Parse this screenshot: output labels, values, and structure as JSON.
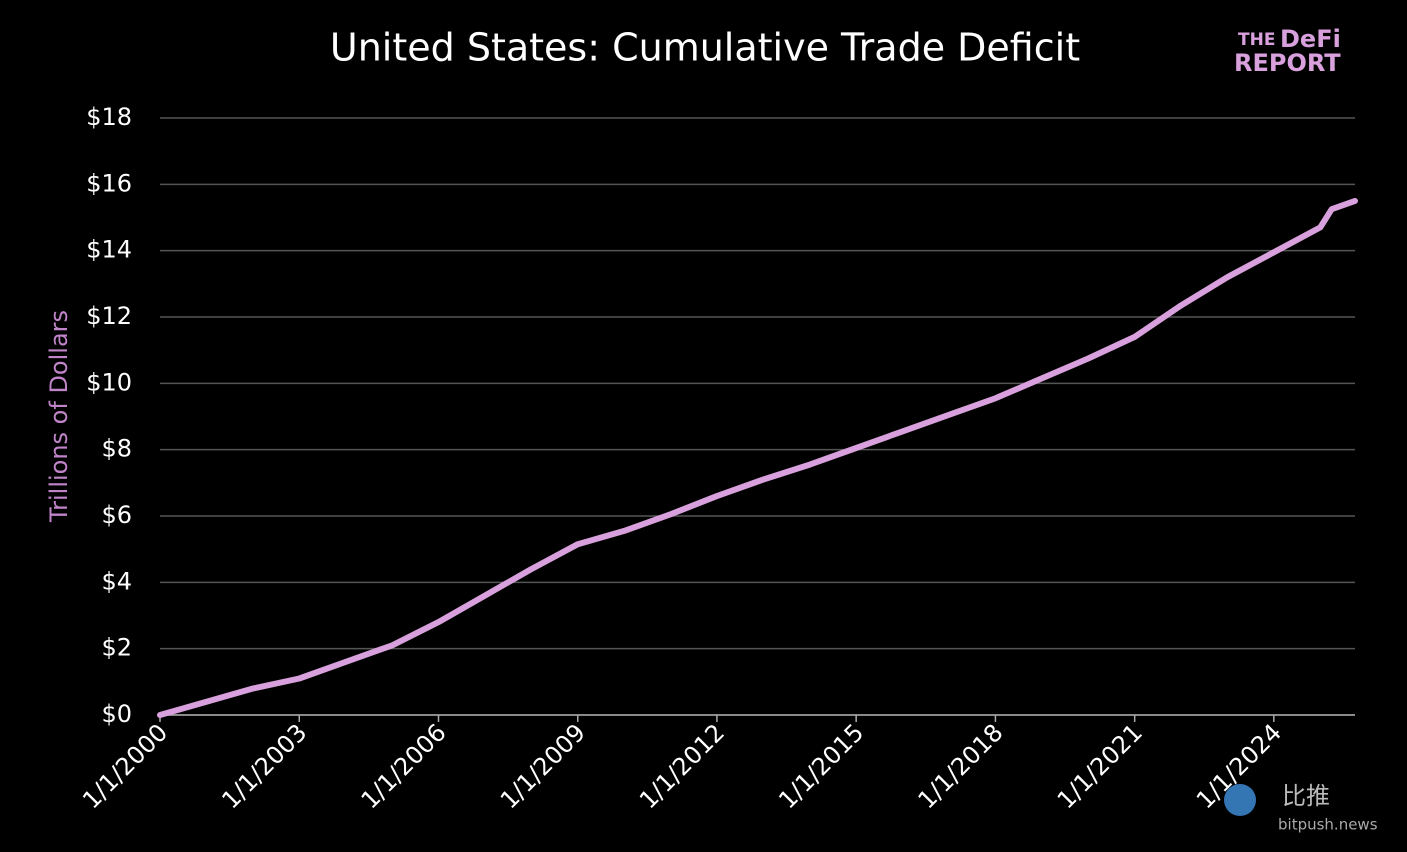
{
  "chart_data": {
    "type": "line",
    "title": "United States: Cumulative Trade Deficit",
    "y_label": "Trillions of Dollars",
    "x": [
      "2000-01-01",
      "2001-01-01",
      "2002-01-01",
      "2003-01-01",
      "2004-01-01",
      "2005-01-01",
      "2006-01-01",
      "2007-01-01",
      "2008-01-01",
      "2009-01-01",
      "2010-01-01",
      "2011-01-01",
      "2012-01-01",
      "2013-01-01",
      "2014-01-01",
      "2015-01-01",
      "2016-01-01",
      "2017-01-01",
      "2018-01-01",
      "2019-01-01",
      "2020-01-01",
      "2021-01-01",
      "2022-01-01",
      "2023-01-01",
      "2024-01-01",
      "2025-01-01",
      "2025-04-01",
      "2025-10-01"
    ],
    "values": [
      0,
      0.4,
      0.8,
      1.1,
      1.6,
      2.1,
      2.8,
      3.6,
      4.4,
      5.15,
      5.55,
      6.05,
      6.6,
      7.1,
      7.55,
      8.05,
      8.55,
      9.05,
      9.55,
      10.15,
      10.75,
      11.4,
      12.35,
      13.2,
      13.95,
      14.7,
      15.25,
      15.5
    ],
    "color": "#d8a0dc",
    "xlim": [
      "2000-01-01",
      "2025-10-01"
    ],
    "xticks": [
      {
        "value": "2000-01-01",
        "label": "1/1/2000"
      },
      {
        "value": "2003-01-01",
        "label": "1/1/2003"
      },
      {
        "value": "2006-01-01",
        "label": "1/1/2006"
      },
      {
        "value": "2009-01-01",
        "label": "1/1/2009"
      },
      {
        "value": "2012-01-01",
        "label": "1/1/2012"
      },
      {
        "value": "2015-01-01",
        "label": "1/1/2015"
      },
      {
        "value": "2018-01-01",
        "label": "1/1/2018"
      },
      {
        "value": "2021-01-01",
        "label": "1/1/2021"
      },
      {
        "value": "2024-01-01",
        "label": "1/1/2024"
      }
    ],
    "ylim": [
      0,
      18
    ],
    "yticks": [
      {
        "value": 0,
        "label": "$0"
      },
      {
        "value": 2,
        "label": "$2"
      },
      {
        "value": 4,
        "label": "$4"
      },
      {
        "value": 6,
        "label": "$6"
      },
      {
        "value": 8,
        "label": "$8"
      },
      {
        "value": 10,
        "label": "$10"
      },
      {
        "value": 12,
        "label": "$12"
      },
      {
        "value": 14,
        "label": "$14"
      },
      {
        "value": 16,
        "label": "$16"
      },
      {
        "value": 18,
        "label": "$18"
      }
    ],
    "grid": true
  },
  "logo": {
    "line1a": "THE",
    "line1b": "DeFi",
    "line2": "REPORT"
  },
  "watermark": {
    "name": "比推",
    "site": "bitpush.news"
  }
}
